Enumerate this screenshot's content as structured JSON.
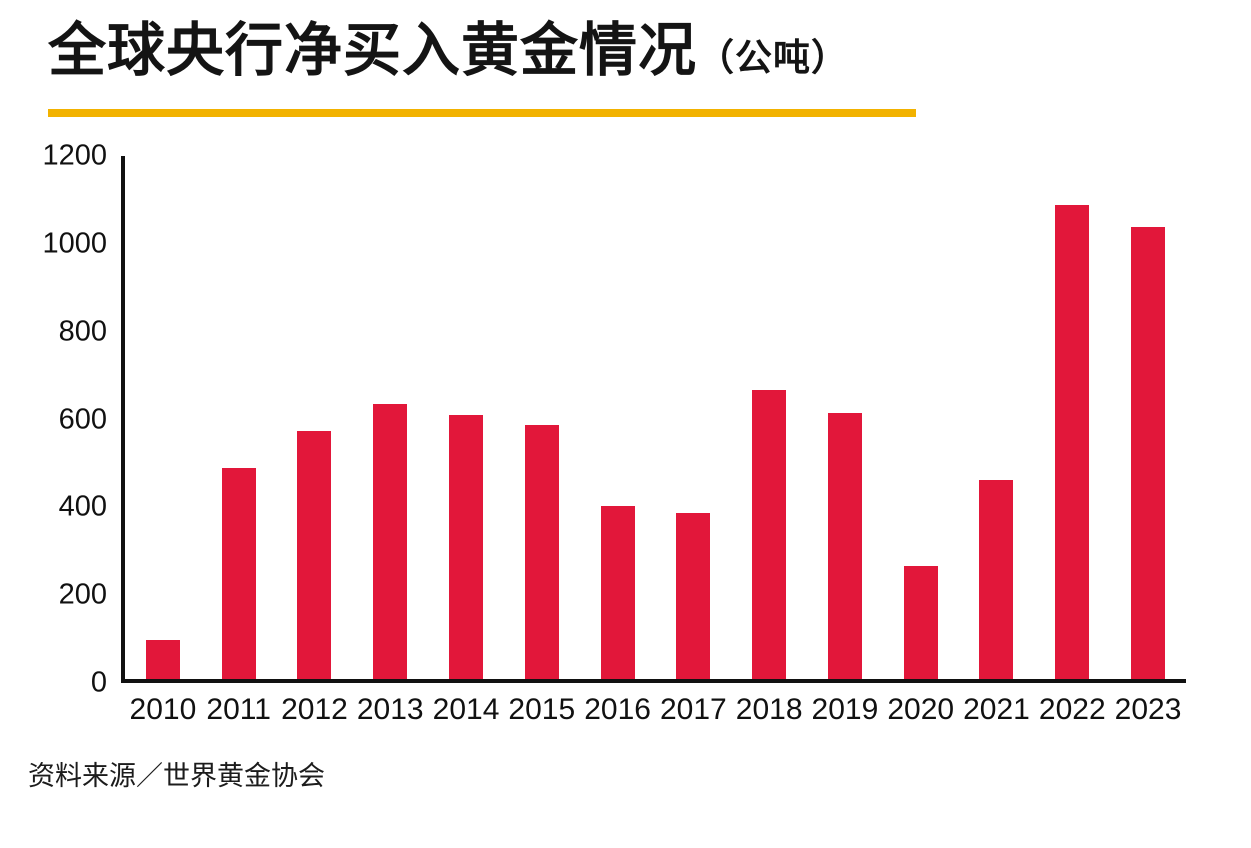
{
  "title": {
    "main": "全球央行净买入黄金情况",
    "unit": "（公吨）"
  },
  "source": "资料来源／世界黄金协会",
  "colors": {
    "bar": "#E2173A",
    "underline": "#F2B200",
    "axis": "#111111"
  },
  "chart_data": {
    "type": "bar",
    "title": "全球央行净买入黄金情况（公吨）",
    "categories": [
      "2010",
      "2011",
      "2012",
      "2013",
      "2014",
      "2015",
      "2016",
      "2017",
      "2018",
      "2019",
      "2020",
      "2021",
      "2022",
      "2023"
    ],
    "values": [
      90,
      485,
      570,
      630,
      605,
      582,
      397,
      381,
      664,
      610,
      260,
      456,
      1088,
      1038
    ],
    "xlabel": "",
    "ylabel": "",
    "ylim": [
      0,
      1200
    ],
    "ytick_step": 200,
    "yticks": [
      0,
      200,
      400,
      600,
      800,
      1000,
      1200
    ],
    "grid": false,
    "legend": "none",
    "bar_color": "#E2173A"
  }
}
